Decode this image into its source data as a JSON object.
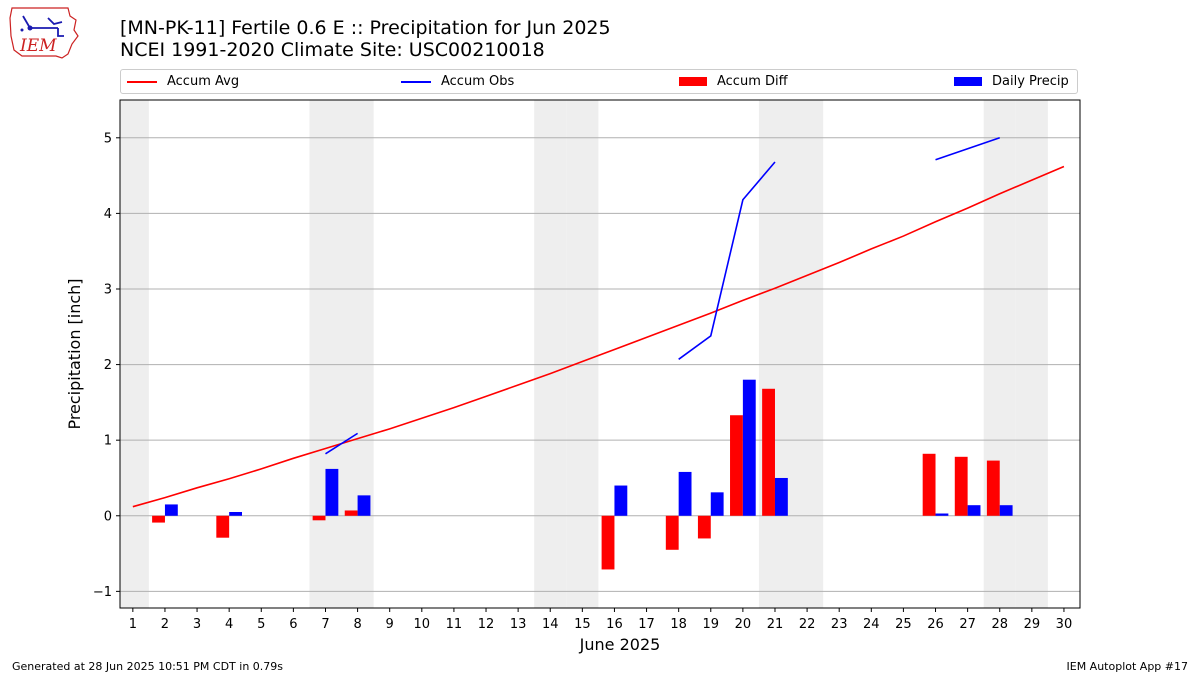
{
  "header": {
    "title_line1": "[MN-PK-11] Fertile 0.6 E :: Precipitation for Jun 2025",
    "title_line2": "NCEI 1991-2020 Climate Site: USC00210018",
    "logo_text": "IEM"
  },
  "footer": {
    "left": "Generated at 28 Jun 2025 10:51 PM CDT in 0.79s",
    "right": "IEM Autoplot App #17"
  },
  "chart_data": {
    "type": "bar",
    "xlabel": "June 2025",
    "ylabel": "Precipitation [inch]",
    "ylim": [
      -1.22,
      5.5
    ],
    "xlim": [
      0.6,
      30.5
    ],
    "yticks": [
      -1,
      0,
      1,
      2,
      3,
      4,
      5
    ],
    "xticks": [
      1,
      2,
      3,
      4,
      5,
      6,
      7,
      8,
      9,
      10,
      11,
      12,
      13,
      14,
      15,
      16,
      17,
      18,
      19,
      20,
      21,
      22,
      23,
      24,
      25,
      26,
      27,
      28,
      29,
      30
    ],
    "grid": "horizontal",
    "legend": {
      "placement": "top",
      "entries": [
        {
          "name": "Accum Avg",
          "color": "#ff0000",
          "kind": "line"
        },
        {
          "name": "Accum Obs",
          "color": "#0000ff",
          "kind": "line"
        },
        {
          "name": "Accum Diff",
          "color": "#ff0000",
          "kind": "bar"
        },
        {
          "name": "Daily Precip",
          "color": "#0000ff",
          "kind": "bar"
        }
      ]
    },
    "weekend_days": [
      1,
      7,
      8,
      14,
      15,
      21,
      22,
      28,
      29
    ],
    "accum_avg": {
      "x": [
        1,
        2,
        3,
        4,
        5,
        6,
        7,
        8,
        9,
        10,
        11,
        12,
        13,
        14,
        15,
        16,
        17,
        18,
        19,
        20,
        21,
        22,
        23,
        24,
        25,
        26,
        27,
        28,
        29,
        30
      ],
      "y": [
        0.12,
        0.24,
        0.37,
        0.49,
        0.62,
        0.76,
        0.89,
        1.02,
        1.15,
        1.29,
        1.43,
        1.58,
        1.73,
        1.88,
        2.04,
        2.2,
        2.36,
        2.52,
        2.68,
        2.85,
        3.01,
        3.18,
        3.35,
        3.53,
        3.7,
        3.89,
        4.07,
        4.26,
        4.44,
        4.62
      ]
    },
    "accum_obs_segments": [
      {
        "x": [
          7,
          8
        ],
        "y": [
          0.82,
          1.09
        ]
      },
      {
        "x": [
          18,
          19,
          20,
          21
        ],
        "y": [
          2.07,
          2.38,
          4.18,
          4.68
        ]
      },
      {
        "x": [
          26,
          28
        ],
        "y": [
          4.71,
          5.0
        ]
      }
    ],
    "accum_diff": {
      "x": [
        2,
        4,
        7,
        8,
        16,
        18,
        19,
        20,
        21,
        26,
        27,
        28
      ],
      "values": [
        -0.09,
        -0.29,
        -0.06,
        0.07,
        -0.71,
        -0.45,
        -0.3,
        1.33,
        1.68,
        0.82,
        0.78,
        0.73
      ]
    },
    "daily_precip": {
      "x": [
        2,
        4,
        7,
        8,
        16,
        18,
        19,
        20,
        21,
        26,
        27,
        28
      ],
      "values": [
        0.15,
        0.05,
        0.62,
        0.27,
        0.4,
        0.58,
        0.31,
        1.8,
        0.5,
        0.03,
        0.14,
        0.14
      ]
    }
  }
}
